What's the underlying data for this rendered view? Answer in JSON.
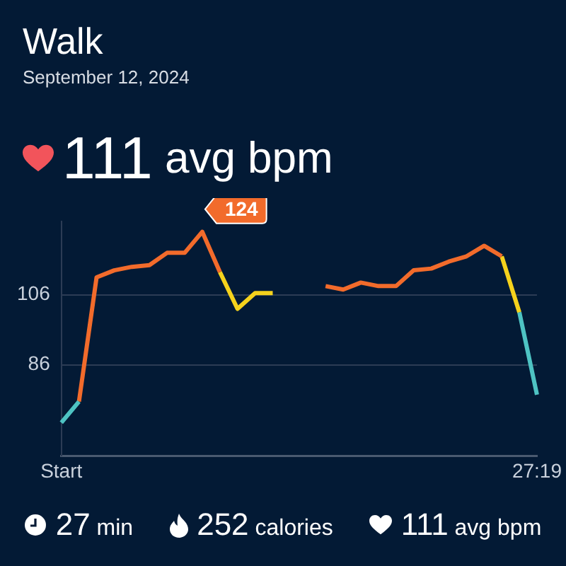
{
  "chart_data": {
    "type": "line",
    "title": "Walk",
    "subtitle": "September 12, 2024",
    "categories": [
      "Start",
      null,
      null,
      null,
      null,
      null,
      null,
      null,
      null,
      null,
      null,
      null,
      null,
      null,
      null,
      null,
      null,
      null,
      null,
      null,
      null,
      null,
      null,
      null,
      null,
      null,
      null,
      "27:19"
    ],
    "series": [
      {
        "color": "#4ec3c3",
        "values": [
          69.5,
          75.5,
          null,
          null,
          null,
          null,
          null,
          null,
          null,
          null,
          null,
          null,
          null,
          null,
          null,
          null,
          null,
          null,
          null,
          null,
          null,
          null,
          null,
          null,
          null,
          null,
          101,
          77.5
        ]
      },
      {
        "color": "#f26b2b",
        "values": [
          null,
          75.5,
          111,
          113,
          114,
          114.5,
          118,
          118,
          124,
          112.5,
          null,
          null,
          null,
          null,
          null,
          108.5,
          107.5,
          109.5,
          108.5,
          108.5,
          113,
          113.5,
          115.5,
          117,
          120,
          117,
          null,
          null
        ]
      },
      {
        "color": "#f5d21c",
        "values": [
          null,
          null,
          null,
          null,
          null,
          null,
          null,
          null,
          null,
          112.5,
          102,
          106.5,
          106.5,
          null,
          null,
          null,
          null,
          null,
          null,
          null,
          null,
          null,
          null,
          null,
          null,
          117,
          101,
          null
        ]
      }
    ],
    "ylim": [
      60,
      127
    ],
    "yticks": [
      86,
      106
    ],
    "grid": "y",
    "legend": false,
    "marker": "none",
    "annotations": [
      "124",
      "111 avg bpm",
      "27 min",
      "252 calories",
      "111 avg bpm"
    ]
  }
}
